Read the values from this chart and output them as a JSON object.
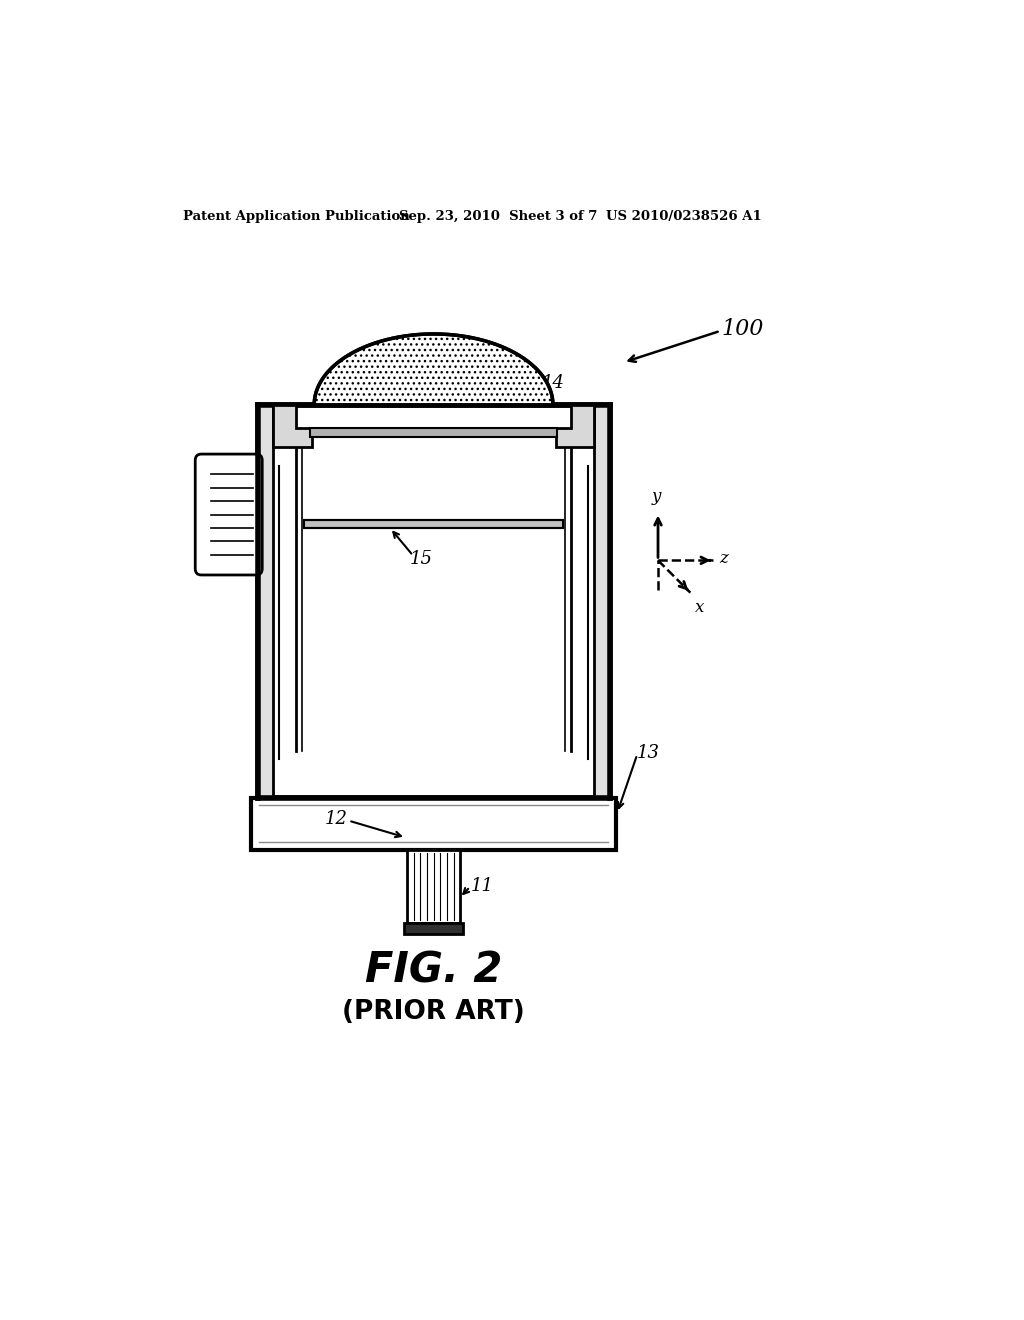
{
  "bg_color": "#ffffff",
  "header_left": "Patent Application Publication",
  "header_mid": "Sep. 23, 2010  Sheet 3 of 7",
  "header_right": "US 2010/0238526 A1",
  "fig_label": "FIG. 2",
  "fig_sublabel": "(PRIOR ART)",
  "label_100": "100",
  "label_14": "14",
  "label_15": "15",
  "label_13": "13",
  "label_12": "12",
  "label_11": "11"
}
